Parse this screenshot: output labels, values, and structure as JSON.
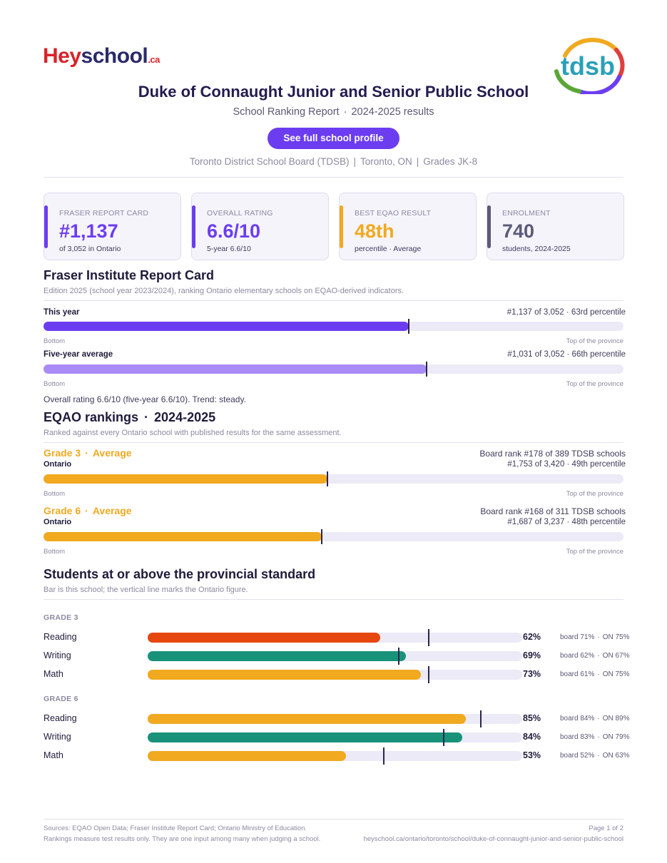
{
  "brand": {
    "hey": "Hey",
    "school": "school",
    "ca": ".ca",
    "board_logo": "tdsb"
  },
  "header": {
    "title": "Duke of Connaught Junior and Senior Public School",
    "subtitle_left": "School Ranking Report",
    "subtitle_right": "2024-2025 results",
    "cta": "See full school profile",
    "board": "Toronto District School Board (TDSB)",
    "city": "Toronto, ON",
    "grades": "Grades JK-8"
  },
  "cards": [
    {
      "label": "FRASER REPORT CARD",
      "value": "#1,137",
      "sub": "of 3,052 in Ontario",
      "color": "#6c3df0"
    },
    {
      "label": "OVERALL RATING",
      "value": "6.6/10",
      "sub": "5-year 6.6/10",
      "color": "#6c3df0"
    },
    {
      "label": "BEST EQAO RESULT",
      "value": "48th",
      "sub": "percentile  ·  Average",
      "color": "#f1a91f"
    },
    {
      "label": "ENROLMENT",
      "value": "740",
      "sub": "students, 2024-2025",
      "color": "#5c5a78"
    }
  ],
  "fraser": {
    "heading": "Fraser Institute Report Card",
    "desc": "Edition 2025 (school year 2023/2024), ranking Ontario elementary schools on EQAO-derived indicators.",
    "rows": [
      {
        "label": "This year",
        "right": "#1,137 of 3,052  ·  63rd percentile",
        "percentile": 63,
        "color": "#6c3df0"
      },
      {
        "label": "Five-year average",
        "right": "#1,031 of 3,052  ·  66th percentile",
        "percentile": 66,
        "color": "#a98bf6"
      }
    ],
    "axis_left": "Bottom",
    "axis_right": "Top of the province",
    "note": "Overall rating 6.6/10 (five-year 6.6/10). Trend: steady."
  },
  "eqao": {
    "heading_left": "EQAO rankings",
    "heading_right": "2024-2025",
    "desc": "Ranked against every Ontario school with published results for the same assessment.",
    "rows": [
      {
        "grade": "Grade 3",
        "level": "Average",
        "scope": "Ontario",
        "board_rank": "Board rank #178 of 389 TDSB schools",
        "rank": "#1,753 of 3,420  ·  49th percentile",
        "percentile": 49
      },
      {
        "grade": "Grade 6",
        "level": "Average",
        "scope": "Ontario",
        "board_rank": "Board rank #168 of 311 TDSB schools",
        "rank": "#1,687 of 3,237  ·  48th percentile",
        "percentile": 48
      }
    ],
    "axis_left": "Bottom",
    "axis_right": "Top of the province"
  },
  "standards": {
    "heading": "Students at or above the provincial standard",
    "desc": "Bar is this school; the vertical line marks the Ontario figure.",
    "groups": [
      {
        "grade": "GRADE 3",
        "subjects": [
          {
            "name": "Reading",
            "value": "62%",
            "pct": 62,
            "board": "board 71%",
            "on": "ON 75%",
            "on_pct": 75,
            "color": "#e5470f"
          },
          {
            "name": "Writing",
            "value": "69%",
            "pct": 69,
            "board": "board 62%",
            "on": "ON 67%",
            "on_pct": 67,
            "color": "#18937a"
          },
          {
            "name": "Math",
            "value": "73%",
            "pct": 73,
            "board": "board 61%",
            "on": "ON 75%",
            "on_pct": 75,
            "color": "#f1a91f"
          }
        ]
      },
      {
        "grade": "GRADE 6",
        "subjects": [
          {
            "name": "Reading",
            "value": "85%",
            "pct": 85,
            "board": "board 84%",
            "on": "ON 89%",
            "on_pct": 89,
            "color": "#f1a91f"
          },
          {
            "name": "Writing",
            "value": "84%",
            "pct": 84,
            "board": "board 83%",
            "on": "ON 79%",
            "on_pct": 79,
            "color": "#18937a"
          },
          {
            "name": "Math",
            "value": "53%",
            "pct": 53,
            "board": "board 52%",
            "on": "ON 63%",
            "on_pct": 63,
            "color": "#f1a91f"
          }
        ]
      }
    ]
  },
  "footer": {
    "sources": "Sources: EQAO Open Data; Fraser Institute Report Card; Ontario Ministry of Education.",
    "disclaimer": "Rankings measure test results only. They are one input among many when judging a school.",
    "page": "Page 1 of 2",
    "url": "heyschool.ca/ontario/toronto/school/duke-of-connaught-junior-and-senior-public-school"
  }
}
